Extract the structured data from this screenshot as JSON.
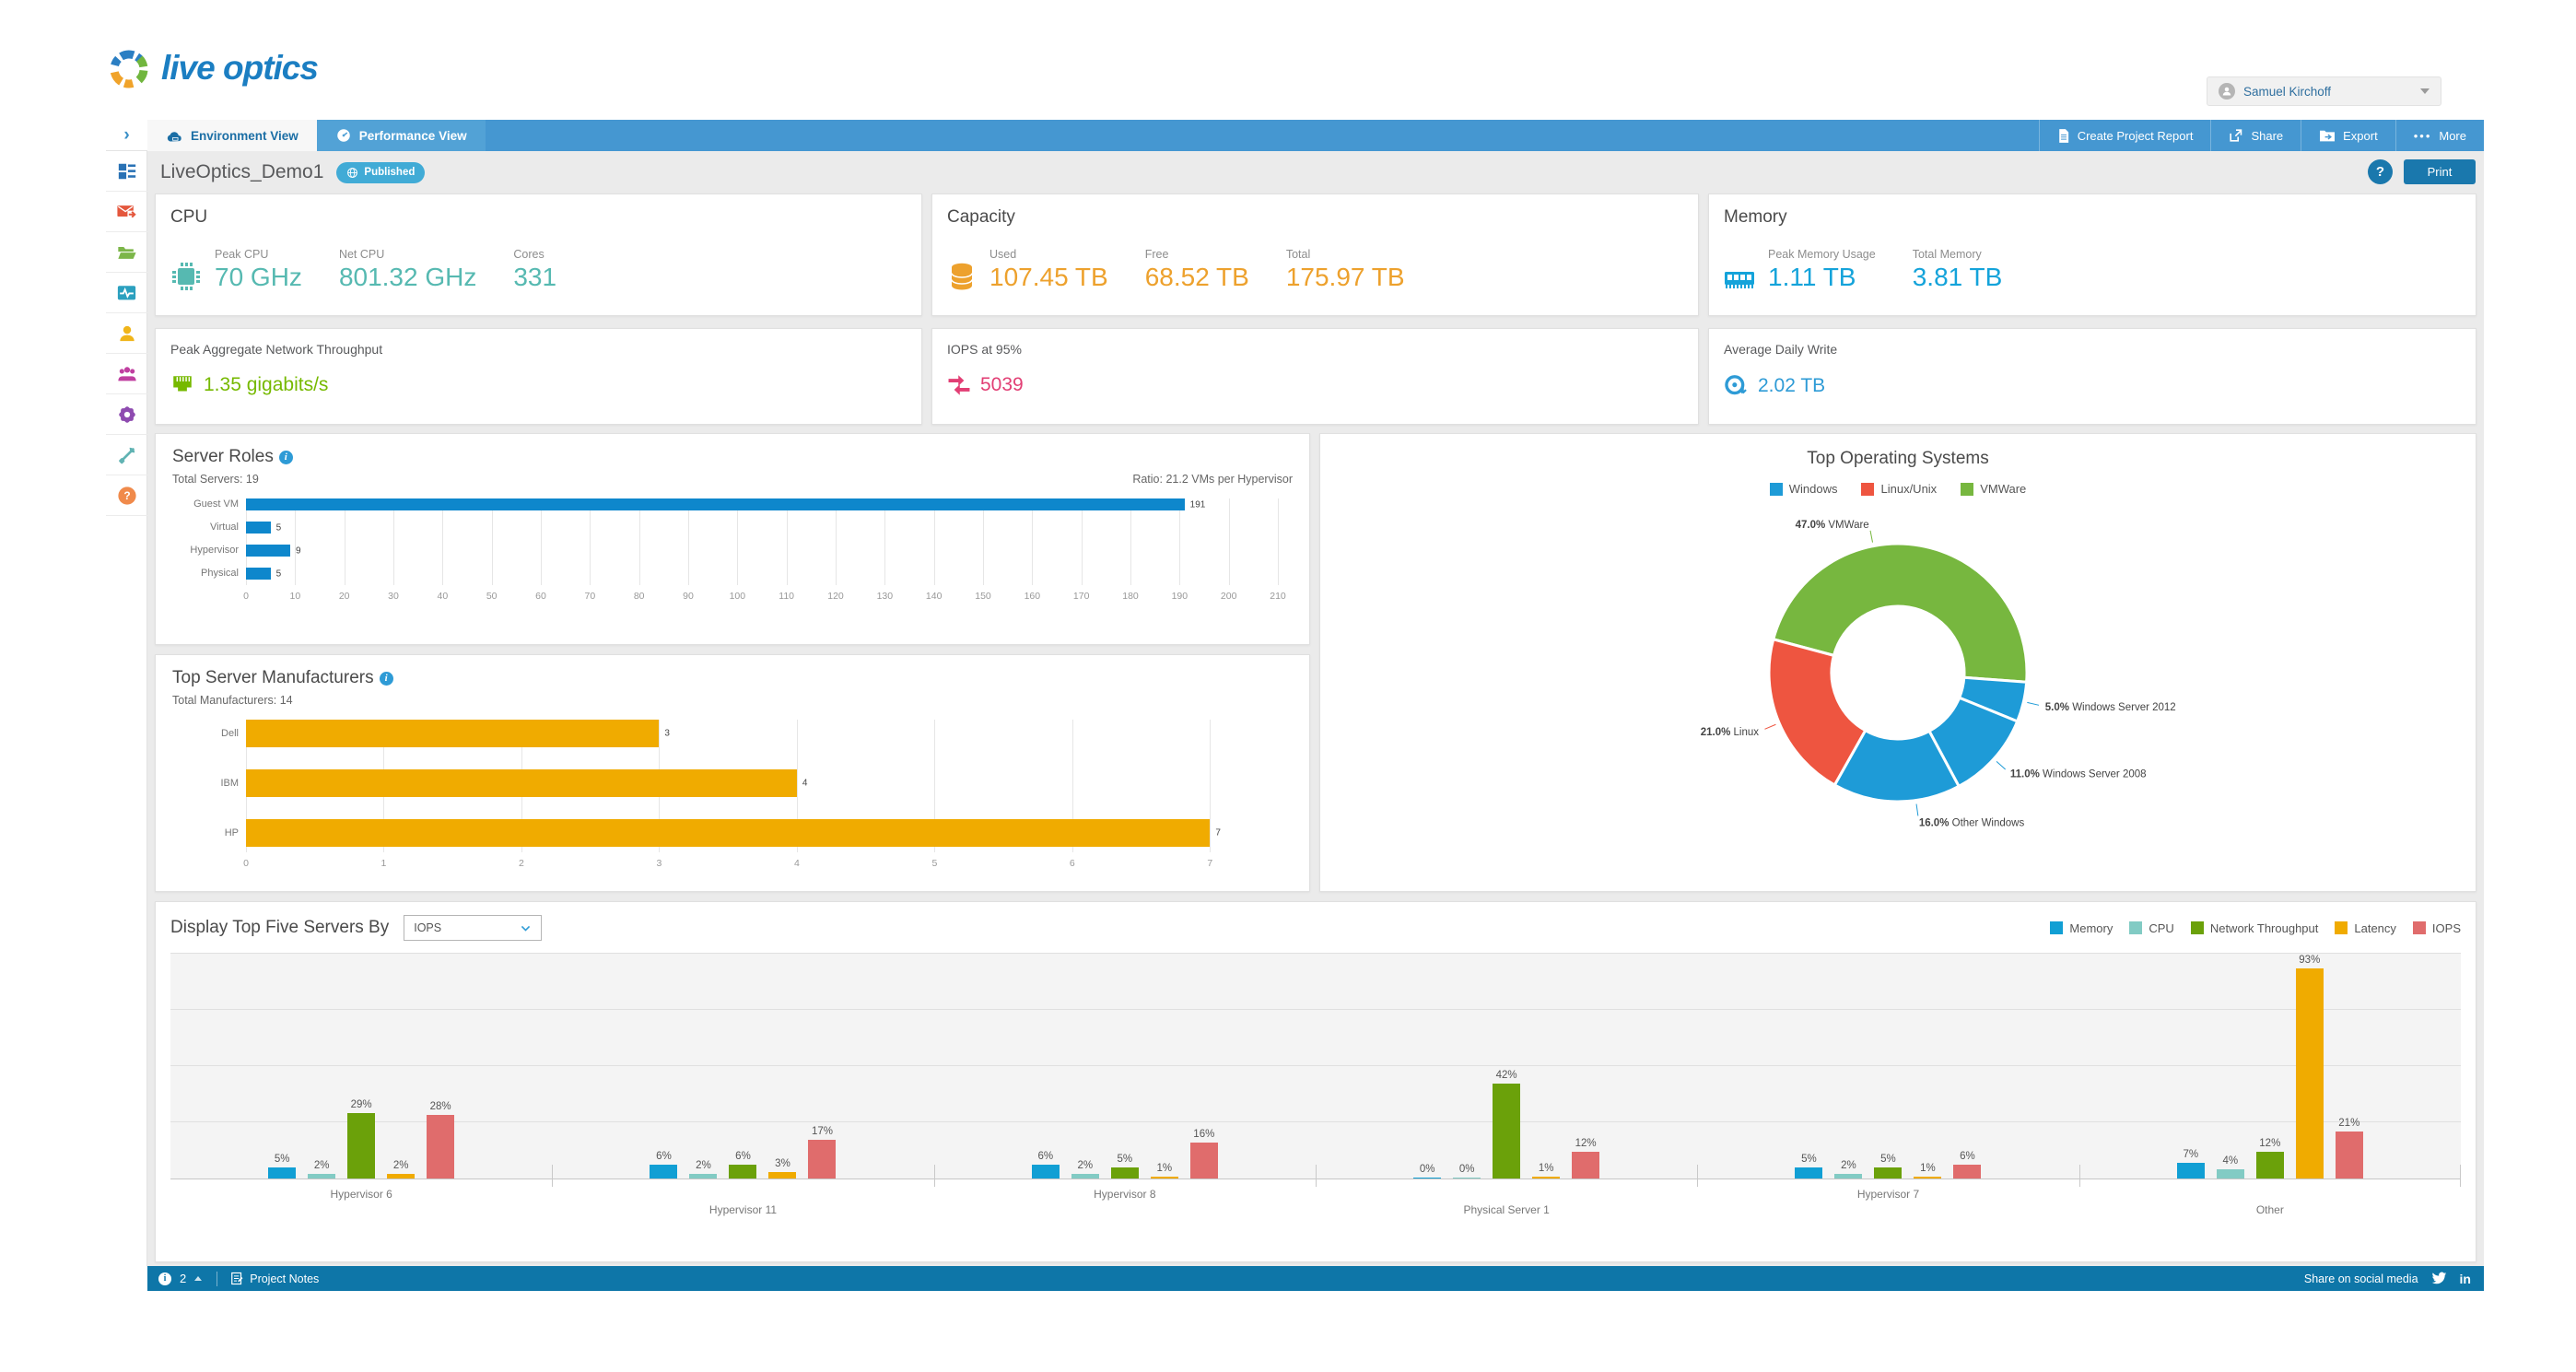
{
  "header": {
    "logo_text": "live optics",
    "user_name": "Samuel Kirchoff"
  },
  "nav": {
    "collapse": "›",
    "tabs": [
      {
        "label": "Environment View",
        "active": true
      },
      {
        "label": "Performance View",
        "active": false
      }
    ],
    "actions": [
      {
        "label": "Create Project Report"
      },
      {
        "label": "Share"
      },
      {
        "label": "Export"
      },
      {
        "label": "More",
        "prefix": "•••"
      }
    ]
  },
  "titlebar": {
    "project_name": "LiveOptics_Demo1",
    "badge": "Published",
    "help": "?",
    "print": "Print"
  },
  "cards": {
    "cpu": {
      "title": "CPU",
      "accent": "#56b9b1",
      "stats": [
        {
          "label": "Peak CPU",
          "value": "70 GHz"
        },
        {
          "label": "Net CPU",
          "value": "801.32 GHz"
        },
        {
          "label": "Cores",
          "value": "331"
        }
      ]
    },
    "capacity": {
      "title": "Capacity",
      "accent": "#eda12d",
      "stats": [
        {
          "label": "Used",
          "value": "107.45 TB"
        },
        {
          "label": "Free",
          "value": "68.52 TB"
        },
        {
          "label": "Total",
          "value": "175.97 TB"
        }
      ]
    },
    "memory": {
      "title": "Memory",
      "accent": "#14a3da",
      "stats": [
        {
          "label": "Peak Memory Usage",
          "value": "1.11 TB"
        },
        {
          "label": "Total Memory",
          "value": "3.81 TB"
        }
      ]
    },
    "network": {
      "title": "Peak Aggregate Network Throughput",
      "accent": "#76b900",
      "value": "1.35 gigabits/s"
    },
    "iops": {
      "title": "IOPS at 95%",
      "accent": "#e23e74",
      "value": "5039"
    },
    "daily_write": {
      "title": "Average Daily Write",
      "accent": "#2e9bd6",
      "value": "2.02 TB"
    }
  },
  "charts": {
    "server_roles": {
      "type": "bar",
      "title": "Server Roles",
      "meta_left": "Total Servers: 19",
      "meta_right": "Ratio: 21.2 VMs per Hypervisor",
      "color": "#0e87cc",
      "categories": [
        "Guest VM",
        "Virtual",
        "Hypervisor",
        "Physical"
      ],
      "values": [
        191,
        5,
        9,
        5
      ],
      "xmax": 210,
      "xstep": 10
    },
    "manufacturers": {
      "type": "bar",
      "title": "Top Server Manufacturers",
      "meta_left": "Total Manufacturers: 14",
      "color": "#f0ab00",
      "categories": [
        "Dell",
        "IBM",
        "HP"
      ],
      "values": [
        3,
        4,
        7
      ],
      "xmax": 7,
      "xstep": 1
    },
    "os": {
      "type": "pie",
      "title": "Top Operating Systems",
      "legend": [
        {
          "label": "Windows",
          "color": "#1e9bd7"
        },
        {
          "label": "Linux/Unix",
          "color": "#ee5540"
        },
        {
          "label": "VMWare",
          "color": "#77b73f"
        }
      ],
      "start_angle": 285,
      "slices": [
        {
          "label": "VMWare",
          "pct": 47.0,
          "color": "#77b73f"
        },
        {
          "label": "Windows Server 2012",
          "pct": 5.0,
          "color": "#1e9bd7"
        },
        {
          "label": "Windows Server 2008",
          "pct": 11.0,
          "color": "#1e9bd7"
        },
        {
          "label": "Other Windows",
          "pct": 16.0,
          "color": "#1e9bd7"
        },
        {
          "label": "Linux",
          "pct": 21.0,
          "color": "#ee5540"
        }
      ]
    },
    "top_servers": {
      "type": "bar",
      "title": "Display Top Five Servers By",
      "dropdown_value": "IOPS",
      "ymax": 100,
      "series": [
        {
          "name": "Memory",
          "color": "#119fd4"
        },
        {
          "name": "CPU",
          "color": "#82cbc4"
        },
        {
          "name": "Network Throughput",
          "color": "#6ba10a"
        },
        {
          "name": "Latency",
          "color": "#f0ab00"
        },
        {
          "name": "IOPS",
          "color": "#e06c6c"
        }
      ],
      "categories": [
        "Hypervisor 6",
        "Hypervisor 11",
        "Hypervisor 8",
        "Physical Server 1",
        "Hypervisor 7",
        "Other"
      ],
      "values": [
        [
          5,
          2,
          29,
          2,
          28
        ],
        [
          6,
          2,
          6,
          3,
          17
        ],
        [
          6,
          2,
          5,
          1,
          16
        ],
        [
          0,
          0,
          42,
          1,
          12
        ],
        [
          5,
          2,
          5,
          1,
          6
        ],
        [
          7,
          4,
          12,
          93,
          21
        ]
      ]
    }
  },
  "footer": {
    "count": "2",
    "notes": "Project Notes",
    "share": "Share on social media"
  }
}
